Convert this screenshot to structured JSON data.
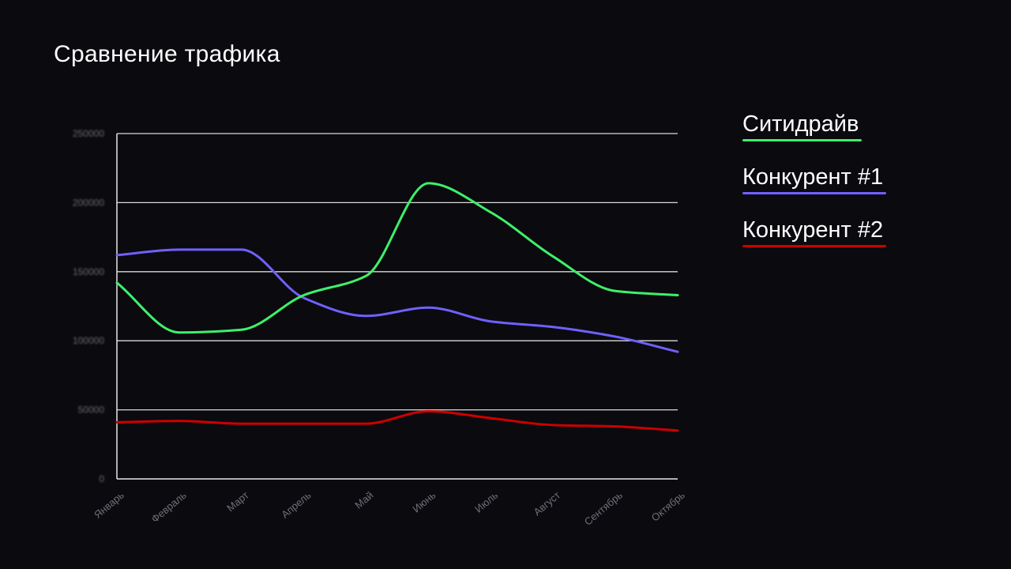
{
  "title": "Сравнение трафика",
  "colors": {
    "background": "#0b0a0f",
    "grid": "#d9d9d9",
    "axis": "#e6e6e6"
  },
  "chart_data": {
    "type": "line",
    "title": "Сравнение трафика",
    "categories": [
      "Январь",
      "Февраль",
      "Март",
      "Апрель",
      "Май",
      "Июнь",
      "Июль",
      "Август",
      "Сентябрь",
      "Октябрь"
    ],
    "y_ticks": [
      "0",
      "50000",
      "100000",
      "150000",
      "200000",
      "250000"
    ],
    "ylim": [
      0,
      250000
    ],
    "grid": true,
    "legend_position": "right",
    "smooth": true,
    "series": [
      {
        "name": "Ситидрайв",
        "color": "#3ef06a",
        "values": [
          142000,
          106000,
          108000,
          133000,
          147000,
          214000,
          193000,
          161000,
          136000,
          133000
        ]
      },
      {
        "name": "Конкурент #1",
        "color": "#7060ff",
        "values": [
          162000,
          166000,
          166000,
          131000,
          118000,
          124000,
          114000,
          110000,
          103000,
          92000
        ]
      },
      {
        "name": "Конкурент #2",
        "color": "#cc0000",
        "values": [
          41000,
          42000,
          40000,
          40000,
          40000,
          49000,
          44000,
          39000,
          38000,
          35000
        ]
      }
    ]
  }
}
